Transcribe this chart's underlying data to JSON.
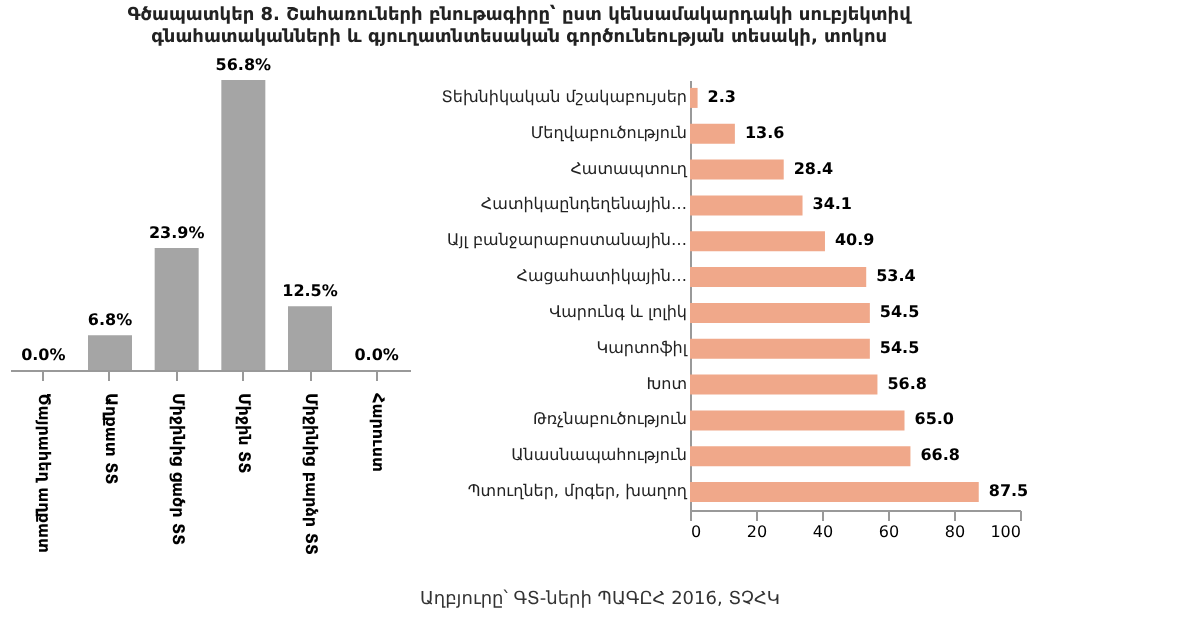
{
  "chart_data": [
    {
      "type": "bar",
      "title": "Գծապատկեր 8. Շահառուների բնութագիրը՝ ըստ կենսամակարդակի սուբյեկտիվ գնահատականների և գյուղատնտեսական գործունեության տեսակի, տոկոս",
      "categories": [
        "Ծայրահեղ աղքատ",
        "Աղքատ ՏՏ",
        "Միջինից ցածր ՏՏ",
        "Միջին ՏՏ",
        "Միջինից բարձր ՏՏ",
        "Հարուստ"
      ],
      "values": [
        0.0,
        6.8,
        23.9,
        56.8,
        12.5,
        0.0
      ],
      "value_labels": [
        "0.0%",
        "6.8%",
        "23.9%",
        "56.8%",
        "12.5%",
        "0.0%"
      ],
      "color": "#a5a5a5",
      "tick_labels": "x"
    },
    {
      "type": "bar",
      "orientation": "horizontal",
      "categories": [
        "Տեխնիկական մշակաբույսեր",
        "Մեղվաբուծություն",
        "Հատապտուղ",
        "Հատիկաընդեղենային…",
        "Այլ բանջարաբոստանային…",
        "Հացահատիկային…",
        "Վարունգ և լոլիկ",
        "Կարտոֆիլ",
        "Խոտ",
        "Թռչնաբուծություն",
        "Անասնապահություն",
        "Պտուղներ, մրգեր, խաղող"
      ],
      "values": [
        2.3,
        13.6,
        28.4,
        34.1,
        40.9,
        53.4,
        54.5,
        54.5,
        56.8,
        65.0,
        66.8,
        87.5
      ],
      "value_labels": [
        "2.3",
        "13.6",
        "28.4",
        "34.1",
        "40.9",
        "53.4",
        "54.5",
        "54.5",
        "56.8",
        "65.0",
        "66.8",
        "87.5"
      ],
      "color": "#f0a88a",
      "xlim": [
        0,
        100
      ],
      "xticks": [
        0,
        20,
        40,
        60,
        80,
        100
      ],
      "annotations": [
        "Աղբյուրը՝ ԳՏ-ների ՊԱԳԸՀ 2016, ՏՉՀԿ"
      ]
    }
  ]
}
